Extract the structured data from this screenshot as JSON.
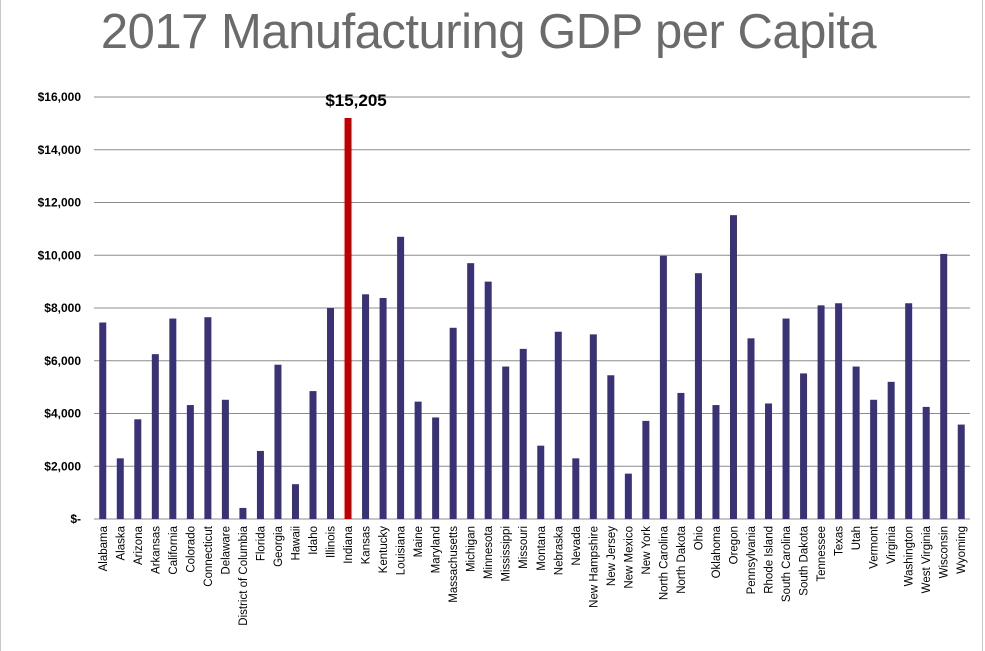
{
  "title": "2017 Manufacturing GDP per Capita",
  "colors": {
    "bar": "#3a3276",
    "highlight": "#c00000",
    "grid": "#8c8c8c",
    "title": "#6b6b6b"
  },
  "chart_data": {
    "type": "bar",
    "title": "2017 Manufacturing GDP per Capita",
    "xlabel": "",
    "ylabel": "",
    "ylim": [
      0,
      16000
    ],
    "yticks": [
      0,
      2000,
      4000,
      6000,
      8000,
      10000,
      12000,
      14000,
      16000
    ],
    "ytick_labels": [
      "$-",
      "$2,000",
      "$4,000",
      "$6,000",
      "$8,000",
      "$10,000",
      "$12,000",
      "$14,000",
      "$16,000"
    ],
    "grid": true,
    "legend": "none",
    "highlight": "Indiana",
    "annotation": "$15,205",
    "categories": [
      "Alabama",
      "Alaska",
      "Arizona",
      "Arkansas",
      "California",
      "Colorado",
      "Connecticut",
      "Delaware",
      "District of Columbia",
      "Florida",
      "Georgia",
      "Hawaii",
      "Idaho",
      "Illinois",
      "Indiana",
      "Kansas",
      "Kentucky",
      "Louisiana",
      "Maine",
      "Maryland",
      "Massachusetts",
      "Michigan",
      "Minnesota",
      "Mississippi",
      "Missouri",
      "Montana",
      "Nebraska",
      "Nevada",
      "New Hampshire",
      "New Jersey",
      "New Mexico",
      "New York",
      "North Carolina",
      "North Dakota",
      "Ohio",
      "Oklahoma",
      "Oregon",
      "Pennsylvania",
      "Rhode Island",
      "South Carolina",
      "South Dakota",
      "Tennessee",
      "Texas",
      "Utah",
      "Vermont",
      "Virginia",
      "Washington",
      "West Virginia",
      "Wisconsin",
      "Wyoming"
    ],
    "values": [
      7450,
      2300,
      3780,
      6250,
      7600,
      4320,
      7650,
      4520,
      420,
      2580,
      5850,
      1320,
      4850,
      8000,
      15205,
      8520,
      8380,
      10700,
      4450,
      3850,
      7250,
      9700,
      9000,
      5780,
      6450,
      2780,
      7100,
      2300,
      7000,
      5450,
      1720,
      3720,
      9980,
      4780,
      9320,
      4320,
      11520,
      6850,
      4380,
      7600,
      5520,
      8100,
      8180,
      5780,
      4520,
      5200,
      8180,
      4250,
      10050,
      3580
    ]
  }
}
